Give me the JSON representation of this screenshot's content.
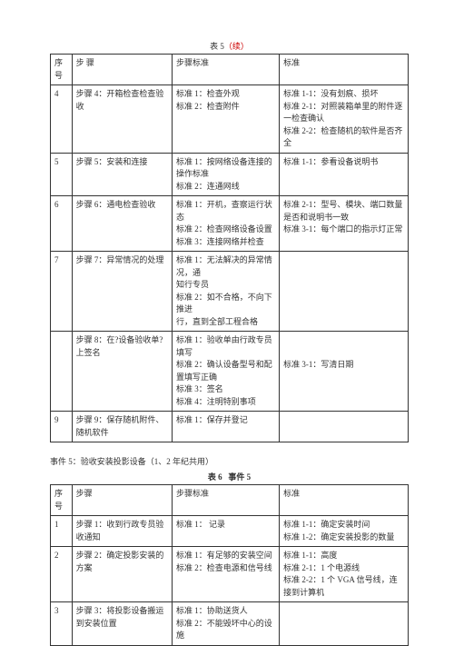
{
  "table1": {
    "caption_prefix": "表 5",
    "caption_suffix": "（续）",
    "headers": {
      "idx": "序号",
      "step": "步 骤",
      "std": "步骤标准",
      "crit": "标准"
    },
    "rows": [
      {
        "idx": "4",
        "step": "步骤 4：开箱检查检查验收",
        "std": [
          "标准 1：检查外观",
          "标准 2：检查附件"
        ],
        "crit": [
          "标准 1-1：没有划痕、损坏",
          "标准 2-1：对照装箱单里的附件逐一检查确认",
          "标准 2-2：检查随机的软件是否齐全"
        ]
      },
      {
        "idx": "5",
        "step": "步骤 5：安装和连接",
        "std": [
          "标准 1：按网络设备连接的操作标准",
          "标准 2：连通网线"
        ],
        "crit": [
          "标准 1-1：参看设备说明书"
        ]
      },
      {
        "idx": "6",
        "step": "步骤 6：通电检查验收",
        "std": [
          "标准 1：开机，查察运行状态",
          "标准 2：检查网络设备设置",
          "标准 3：连接网络并检查"
        ],
        "crit": [
          "标准 2-1：型号、模块、端口数量是否和说明书一致",
          "标准 3-1：每个端口的指示灯正常"
        ]
      },
      {
        "idx": "7",
        "step": "步骤 7：异常情况的处理",
        "std": [
          "标准 1：无法解决的异常情况，通",
          "知行专员",
          "标准 2：如不合格，不向下推进",
          "行，直到全部工程合格"
        ],
        "crit": []
      },
      {
        "idx": "",
        "step": "步骤 8：在?设备验收单?上签名",
        "std": [
          "标准 1：验收单由行政专员填写",
          "标准 2：确认设备型号和配置填写正确",
          "标准 3：签名",
          "标准 4：注明特别事项"
        ],
        "crit": [
          "",
          "",
          "标准 3-1：写清日期"
        ]
      },
      {
        "idx": "9",
        "step": "步骤 9：保存随机附件、随机软件",
        "std": [
          "标准 1：保存并登记"
        ],
        "crit": []
      }
    ]
  },
  "section": {
    "title": "事件 5：验收安装投影设备（1、2 年纪共用）"
  },
  "table2": {
    "caption_left": "表 6",
    "caption_right": "事件 5",
    "headers": {
      "idx": "序号",
      "step": "步骤",
      "std": "步骤标准",
      "crit": "标准"
    },
    "rows": [
      {
        "idx": "1",
        "step": "步骤 1：收到行政专员验收通知",
        "std": [
          "标准 1：   记录"
        ],
        "crit": [
          "标准 1-1：确定安装时间",
          "标准 1-2：确定安装投影的数量"
        ]
      },
      {
        "idx": "2",
        "step": "步骤 2：确定投影安装的方案",
        "std": [
          "标准 1：有足够的安装空间",
          "标准 2：检查电源和信号线"
        ],
        "crit": [
          "标准 1-1：高度",
          "标准 2-1：1 个电源线",
          "标准 2-2：1 个 VGA 信号线，连接到计算机"
        ]
      },
      {
        "idx": "3",
        "step": "步骤 3：将投影设备搬运到安装位置",
        "std": [
          "标准 1：协助送货人",
          "标准 2：不能毁坏中心的设施"
        ],
        "crit": []
      }
    ]
  }
}
